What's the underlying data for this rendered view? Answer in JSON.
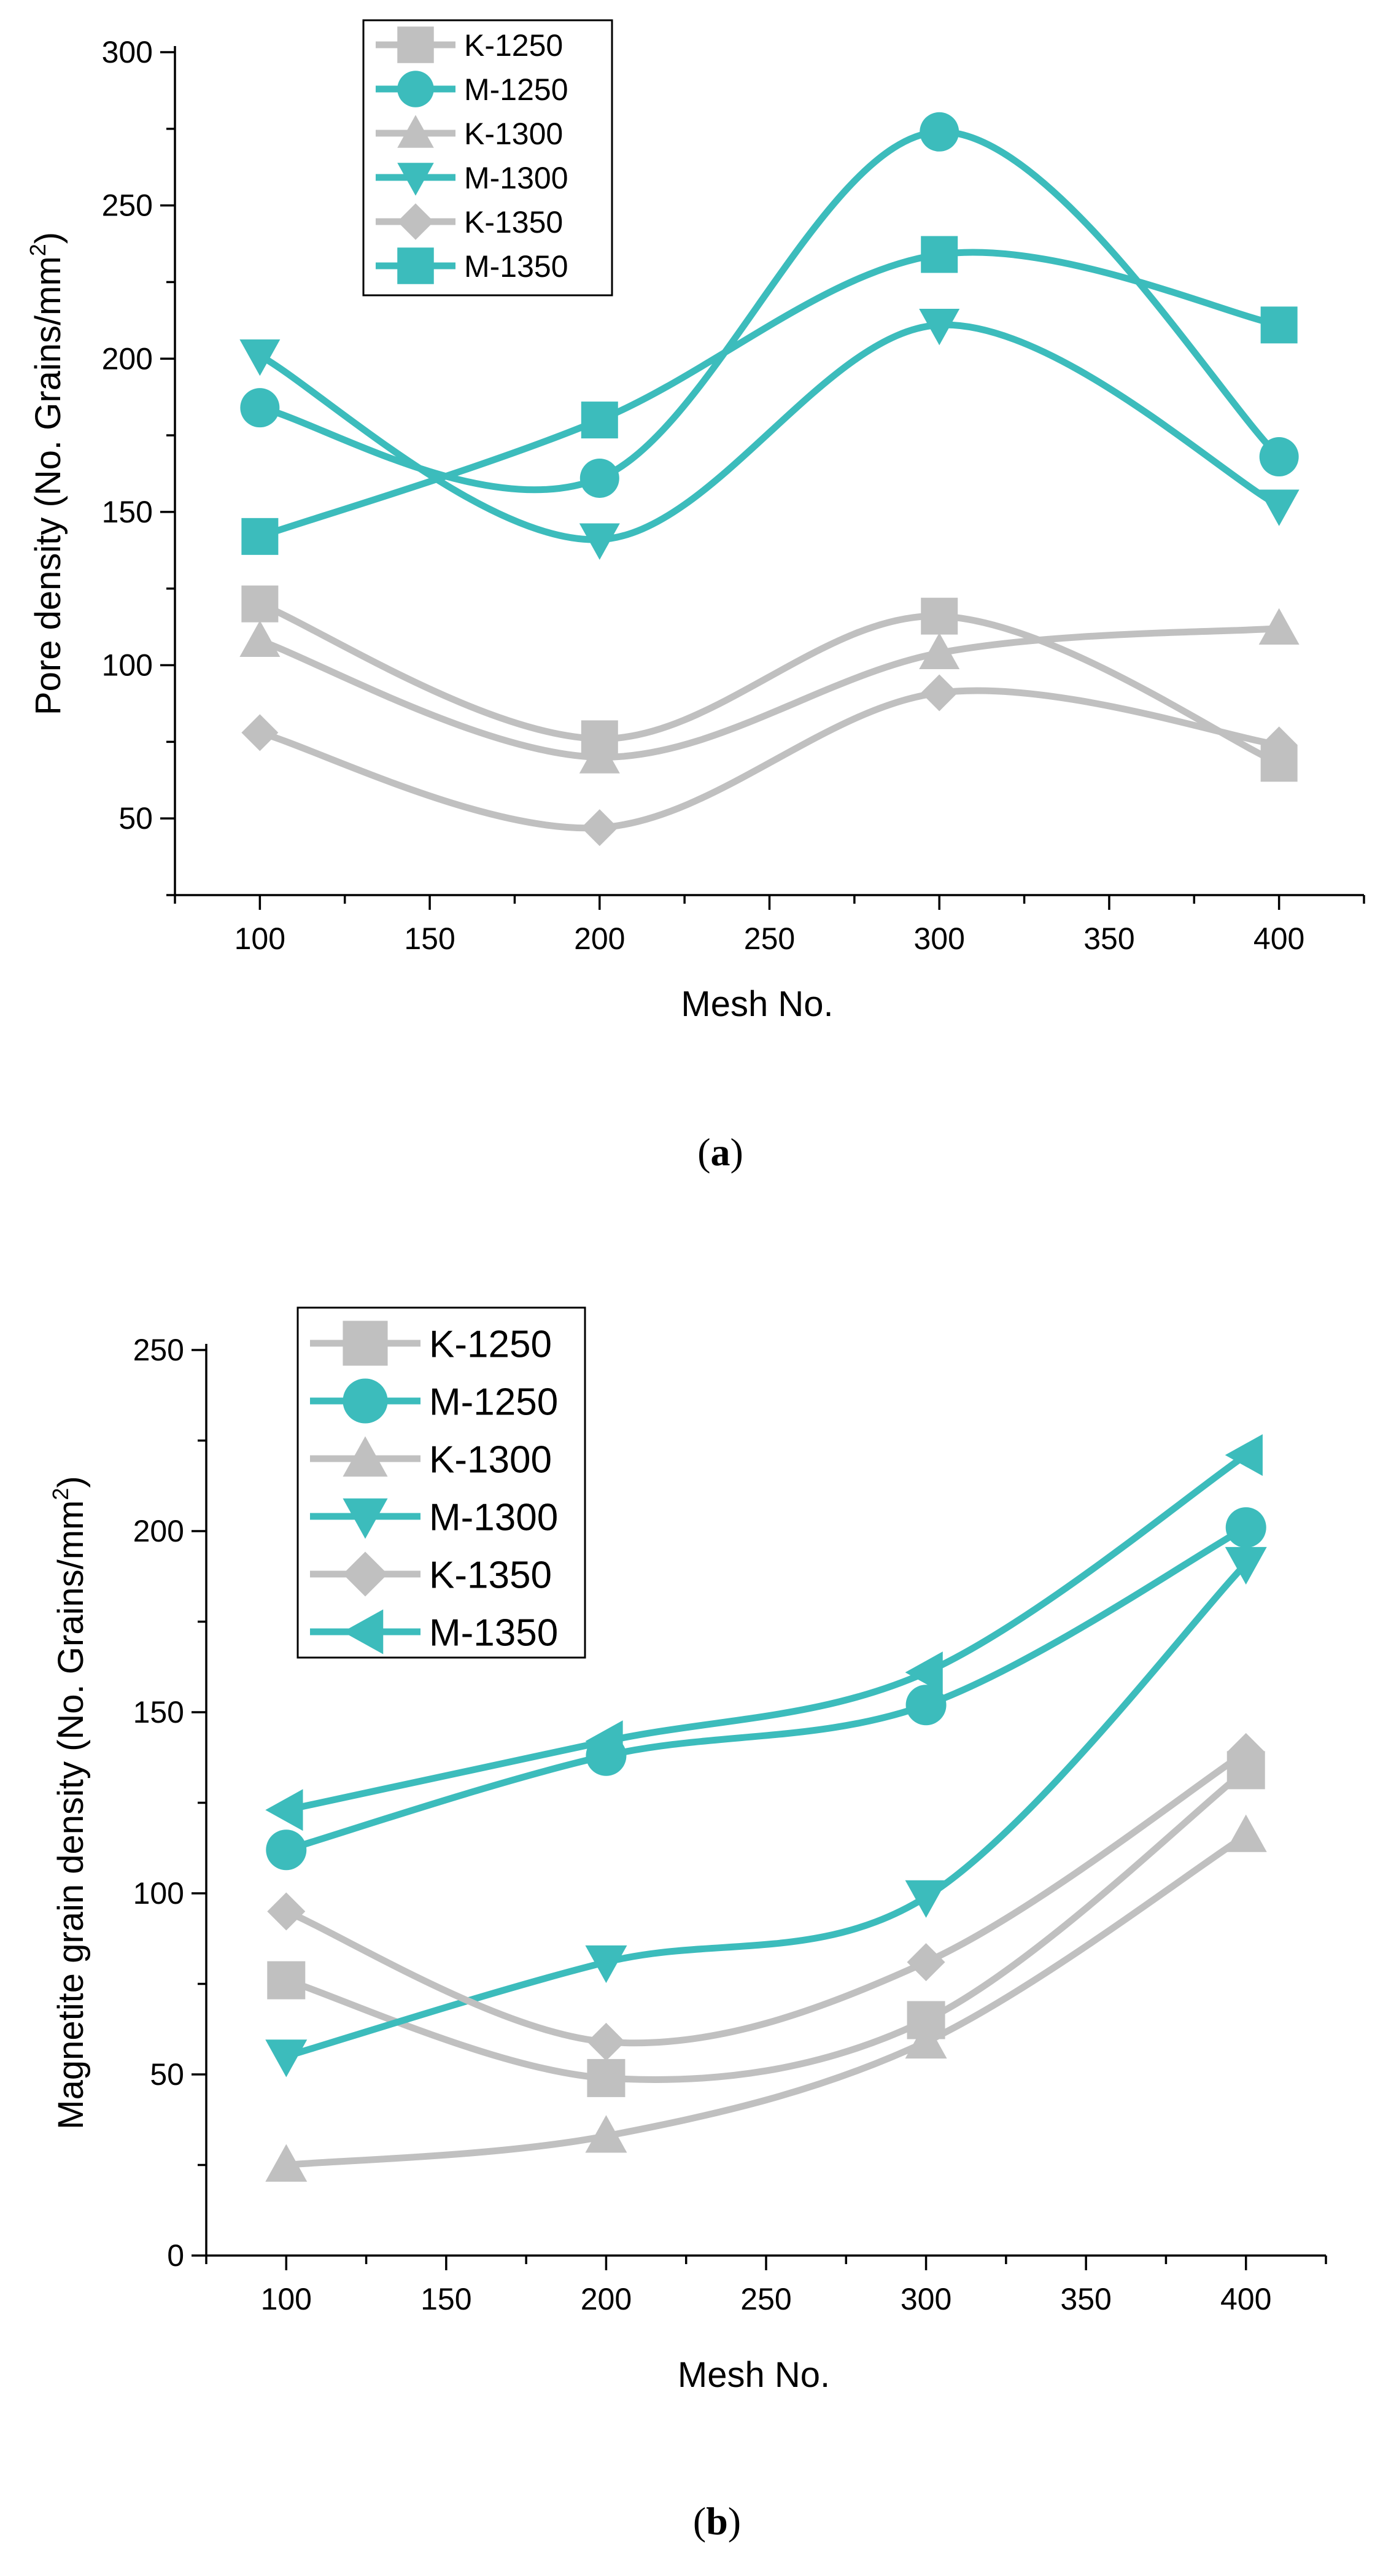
{
  "colors": {
    "gray": "#c0c0c0",
    "teal": "#3cbcbc"
  },
  "chart_data": [
    {
      "type": "line",
      "title": "",
      "caption_letter": "a",
      "xlabel": "Mesh No.",
      "ylabel": "Pore density (No. Grains/mm",
      "ylabel_sup": "2",
      "ylabel_close": ")",
      "xlim": [
        75,
        425
      ],
      "ylim": [
        25,
        300
      ],
      "x_ticks": [
        100,
        150,
        200,
        250,
        300,
        350,
        400
      ],
      "y_ticks": [
        50,
        100,
        150,
        200,
        250,
        300
      ],
      "x": [
        100,
        200,
        300,
        400
      ],
      "legend": "top-left",
      "series": [
        {
          "name": "K-1250",
          "color": "gray",
          "marker": "square",
          "values": [
            120,
            76,
            116,
            68
          ]
        },
        {
          "name": "M-1250",
          "color": "teal",
          "marker": "circle",
          "values": [
            184,
            161,
            274,
            168
          ]
        },
        {
          "name": "K-1300",
          "color": "gray",
          "marker": "triangle-up",
          "values": [
            108,
            70,
            104,
            112
          ]
        },
        {
          "name": "M-1300",
          "color": "teal",
          "marker": "triangle-down",
          "values": [
            201,
            141,
            211,
            152
          ]
        },
        {
          "name": "K-1350",
          "color": "gray",
          "marker": "diamond",
          "values": [
            78,
            47,
            91,
            74
          ]
        },
        {
          "name": "M-1350",
          "color": "teal",
          "marker": "square",
          "values": [
            142,
            180,
            234,
            211
          ]
        }
      ]
    },
    {
      "type": "line",
      "title": "",
      "caption_letter": "b",
      "xlabel": "Mesh No.",
      "ylabel": "Magnetite grain density (No. Grains/mm",
      "ylabel_sup": "2",
      "ylabel_close": ")",
      "xlim": [
        75,
        425
      ],
      "ylim": [
        0,
        250
      ],
      "x_ticks": [
        100,
        150,
        200,
        250,
        300,
        350,
        400
      ],
      "y_ticks": [
        0,
        50,
        100,
        150,
        200,
        250
      ],
      "x": [
        100,
        200,
        300,
        400
      ],
      "legend": "top-left",
      "series": [
        {
          "name": "K-1250",
          "color": "gray",
          "marker": "square",
          "values": [
            76,
            49,
            65,
            134
          ]
        },
        {
          "name": "M-1250",
          "color": "teal",
          "marker": "circle",
          "values": [
            112,
            138,
            152,
            201
          ]
        },
        {
          "name": "K-1300",
          "color": "gray",
          "marker": "triangle-up",
          "values": [
            25,
            33,
            59,
            116
          ]
        },
        {
          "name": "M-1300",
          "color": "teal",
          "marker": "triangle-down",
          "values": [
            55,
            81,
            99,
            191
          ]
        },
        {
          "name": "K-1350",
          "color": "gray",
          "marker": "diamond",
          "values": [
            95,
            59,
            81,
            139
          ]
        },
        {
          "name": "M-1350",
          "color": "teal",
          "marker": "triangle-left",
          "values": [
            123,
            142,
            161,
            221
          ]
        }
      ]
    }
  ]
}
